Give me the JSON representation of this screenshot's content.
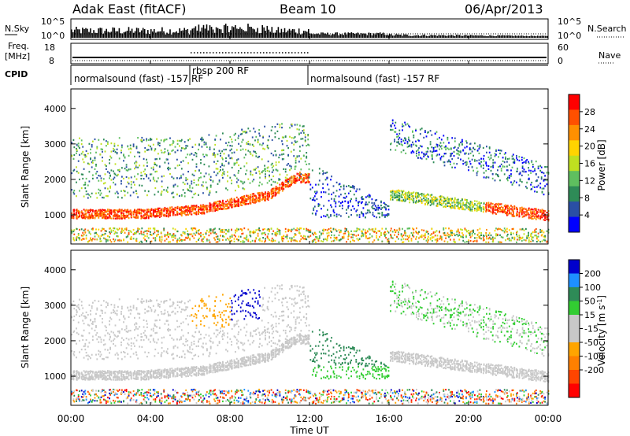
{
  "header": {
    "title": "Adak East (fitACF)",
    "beam": "Beam 10",
    "date": "06/Apr/2013"
  },
  "colors": {
    "power_scale": [
      "#0000ff",
      "#2a4fa5",
      "#2e8b57",
      "#5fbf5f",
      "#bfe020",
      "#ffd400",
      "#ff9000",
      "#ff5000",
      "#ff0000"
    ],
    "velocity_scale": [
      "#ff0000",
      "#ff4500",
      "#ff8000",
      "#ffa500",
      "#c8c8c8",
      "#c8c8c8",
      "#32cd32",
      "#2e8b57",
      "#1e90ff",
      "#0000cd"
    ]
  },
  "chart_data": [
    {
      "type": "line",
      "panel": "noise",
      "left_label": "N.Sky",
      "right_label": "N.Search",
      "left_ticks": [
        "10^5",
        "10^0"
      ],
      "right_ticks": [
        "10^5",
        "10^0"
      ],
      "xlim": [
        0,
        24
      ],
      "description_series": [
        {
          "name": "N.Sky",
          "style": "solid-bars"
        },
        {
          "name": "N.Search",
          "style": "dotted"
        }
      ]
    },
    {
      "type": "line",
      "panel": "frequency",
      "left_label": "Freq.",
      "left_unit": "[MHz]",
      "right_label": "Nave",
      "left_ticks": [
        "18",
        "8"
      ],
      "right_ticks": [
        "60",
        "0"
      ],
      "xlim": [
        0,
        24
      ]
    },
    {
      "type": "table",
      "panel": "cpid",
      "label": "CPID",
      "segments": [
        {
          "start": 0,
          "end": 6,
          "text": "normalsound (fast) -157 RF"
        },
        {
          "start": 6,
          "end": 12,
          "text": "rbsp 200 RF"
        },
        {
          "start": 12,
          "end": 24,
          "text": "normalsound (fast) -157 RF"
        }
      ]
    },
    {
      "type": "heatmap",
      "panel": "power",
      "ylabel": "Slant Range [km]",
      "yticks": [
        1000,
        2000,
        3000,
        4000
      ],
      "ylim": [
        180,
        4550
      ],
      "xlim": [
        0,
        24
      ],
      "colorbar_label": "Power [dB]",
      "colorbar_ticks": [
        4,
        8,
        12,
        16,
        20,
        24,
        28
      ],
      "colorbar_range": [
        0,
        32
      ]
    },
    {
      "type": "heatmap",
      "panel": "velocity",
      "ylabel": "Slant Range [km]",
      "yticks": [
        1000,
        2000,
        3000,
        4000
      ],
      "ylim": [
        180,
        4550
      ],
      "xlim": [
        0,
        24
      ],
      "colorbar_label": "Velocity [m s",
      "colorbar_label_sup": "-1",
      "colorbar_label_end": "]",
      "colorbar_ticks": [
        "-200",
        "-100",
        "-50",
        "-15",
        "15",
        "50",
        "100",
        "200"
      ]
    }
  ],
  "x_axis": {
    "label": "Time UT",
    "ticks": [
      "00:00",
      "04:00",
      "08:00",
      "12:00",
      "16:00",
      "20:00",
      "00:00"
    ]
  }
}
